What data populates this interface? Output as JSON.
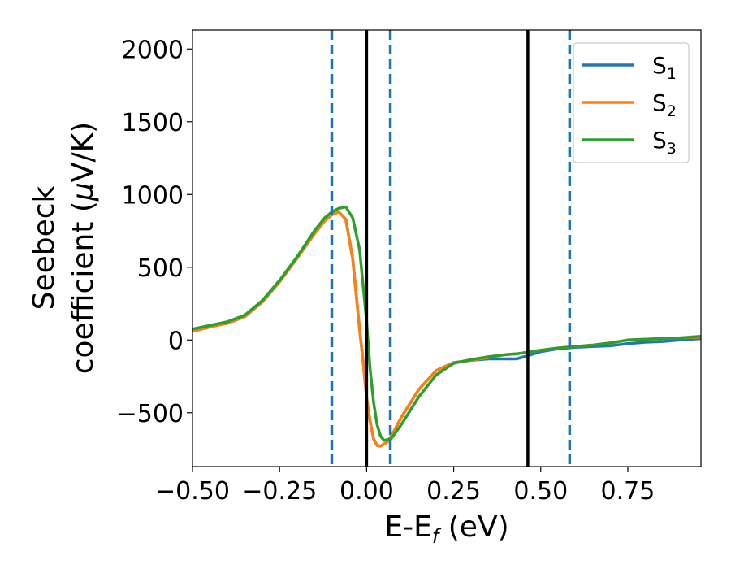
{
  "chart_data": {
    "type": "line",
    "title": "",
    "xlabel": {
      "main": "E-E",
      "sub": "f",
      "suffix": " (eV)"
    },
    "ylabel": {
      "line1": "Seebeck",
      "line2": "coefficient  (",
      "mu": "μ",
      "line2_suffix": "V/K)"
    },
    "xlim": [
      -0.5,
      0.96
    ],
    "ylim": [
      -870,
      2130
    ],
    "xticks": [
      {
        "value": -0.5,
        "label": "−0.50"
      },
      {
        "value": -0.25,
        "label": "−0.25"
      },
      {
        "value": 0.0,
        "label": "0.00"
      },
      {
        "value": 0.25,
        "label": "0.25"
      },
      {
        "value": 0.5,
        "label": "0.50"
      },
      {
        "value": 0.75,
        "label": "0.75"
      }
    ],
    "yticks": [
      {
        "value": -500,
        "label": "−500"
      },
      {
        "value": 0,
        "label": "0"
      },
      {
        "value": 500,
        "label": "500"
      },
      {
        "value": 1000,
        "label": "1000"
      },
      {
        "value": 1500,
        "label": "1500"
      },
      {
        "value": 2000,
        "label": "2000"
      }
    ],
    "grid": false,
    "legend_position": "top-right",
    "series": [
      {
        "name": "S",
        "sub": "1",
        "color": "#1f77b4",
        "x": [
          -0.5,
          -0.45,
          -0.4,
          -0.35,
          -0.3,
          -0.25,
          -0.2,
          -0.15,
          -0.12,
          -0.1,
          -0.08,
          -0.06,
          -0.04,
          -0.02,
          -0.01,
          0.0,
          0.01,
          0.02,
          0.03,
          0.04,
          0.06,
          0.08,
          0.1,
          0.15,
          0.2,
          0.25,
          0.3,
          0.35,
          0.4,
          0.43,
          0.46,
          0.5,
          0.55,
          0.6,
          0.65,
          0.7,
          0.75,
          0.8,
          0.85,
          0.9,
          0.96
        ],
        "y": [
          60,
          90,
          115,
          160,
          260,
          400,
          560,
          730,
          820,
          860,
          880,
          830,
          560,
          70,
          -150,
          -400,
          -560,
          -680,
          -725,
          -730,
          -700,
          -620,
          -530,
          -340,
          -210,
          -155,
          -140,
          -130,
          -130,
          -130,
          -110,
          -80,
          -60,
          -50,
          -45,
          -40,
          -25,
          -15,
          -10,
          0,
          10
        ]
      },
      {
        "name": "S",
        "sub": "2",
        "color": "#ff7f0e",
        "x": [
          -0.5,
          -0.45,
          -0.4,
          -0.35,
          -0.3,
          -0.25,
          -0.2,
          -0.15,
          -0.12,
          -0.1,
          -0.08,
          -0.06,
          -0.04,
          -0.02,
          -0.01,
          0.0,
          0.01,
          0.02,
          0.03,
          0.04,
          0.06,
          0.08,
          0.1,
          0.15,
          0.2,
          0.25,
          0.3,
          0.35,
          0.4,
          0.43,
          0.46,
          0.5,
          0.55,
          0.6,
          0.65,
          0.7,
          0.75,
          0.8,
          0.85,
          0.9,
          0.96
        ],
        "y": [
          60,
          90,
          115,
          160,
          260,
          400,
          560,
          730,
          820,
          860,
          880,
          830,
          560,
          70,
          -150,
          -400,
          -560,
          -680,
          -725,
          -730,
          -700,
          -620,
          -530,
          -340,
          -210,
          -155,
          -140,
          -120,
          -100,
          -95,
          -85,
          -70,
          -55,
          -45,
          -35,
          -20,
          0,
          5,
          10,
          15,
          20
        ]
      },
      {
        "name": "S",
        "sub": "3",
        "color": "#2ca02c",
        "x": [
          -0.5,
          -0.45,
          -0.4,
          -0.35,
          -0.3,
          -0.25,
          -0.2,
          -0.15,
          -0.12,
          -0.1,
          -0.08,
          -0.06,
          -0.04,
          -0.02,
          0.0,
          0.01,
          0.02,
          0.03,
          0.04,
          0.05,
          0.07,
          0.1,
          0.15,
          0.2,
          0.25,
          0.3,
          0.35,
          0.4,
          0.43,
          0.46,
          0.5,
          0.55,
          0.6,
          0.65,
          0.7,
          0.75,
          0.8,
          0.85,
          0.9,
          0.96
        ],
        "y": [
          75,
          100,
          125,
          170,
          270,
          410,
          570,
          750,
          840,
          880,
          905,
          915,
          840,
          620,
          120,
          -200,
          -430,
          -580,
          -660,
          -690,
          -680,
          -580,
          -390,
          -240,
          -160,
          -135,
          -115,
          -100,
          -95,
          -85,
          -70,
          -55,
          -45,
          -35,
          -20,
          0,
          5,
          10,
          15,
          25
        ]
      }
    ],
    "vlines": [
      {
        "x": -0.1,
        "style": "dashed",
        "color": "#1f77b4"
      },
      {
        "x": 0.0,
        "style": "solid",
        "color": "#000000"
      },
      {
        "x": 0.068,
        "style": "dashed",
        "color": "#1f77b4"
      },
      {
        "x": 0.463,
        "style": "solid",
        "color": "#000000"
      },
      {
        "x": 0.583,
        "style": "dashed",
        "color": "#1f77b4"
      }
    ]
  }
}
